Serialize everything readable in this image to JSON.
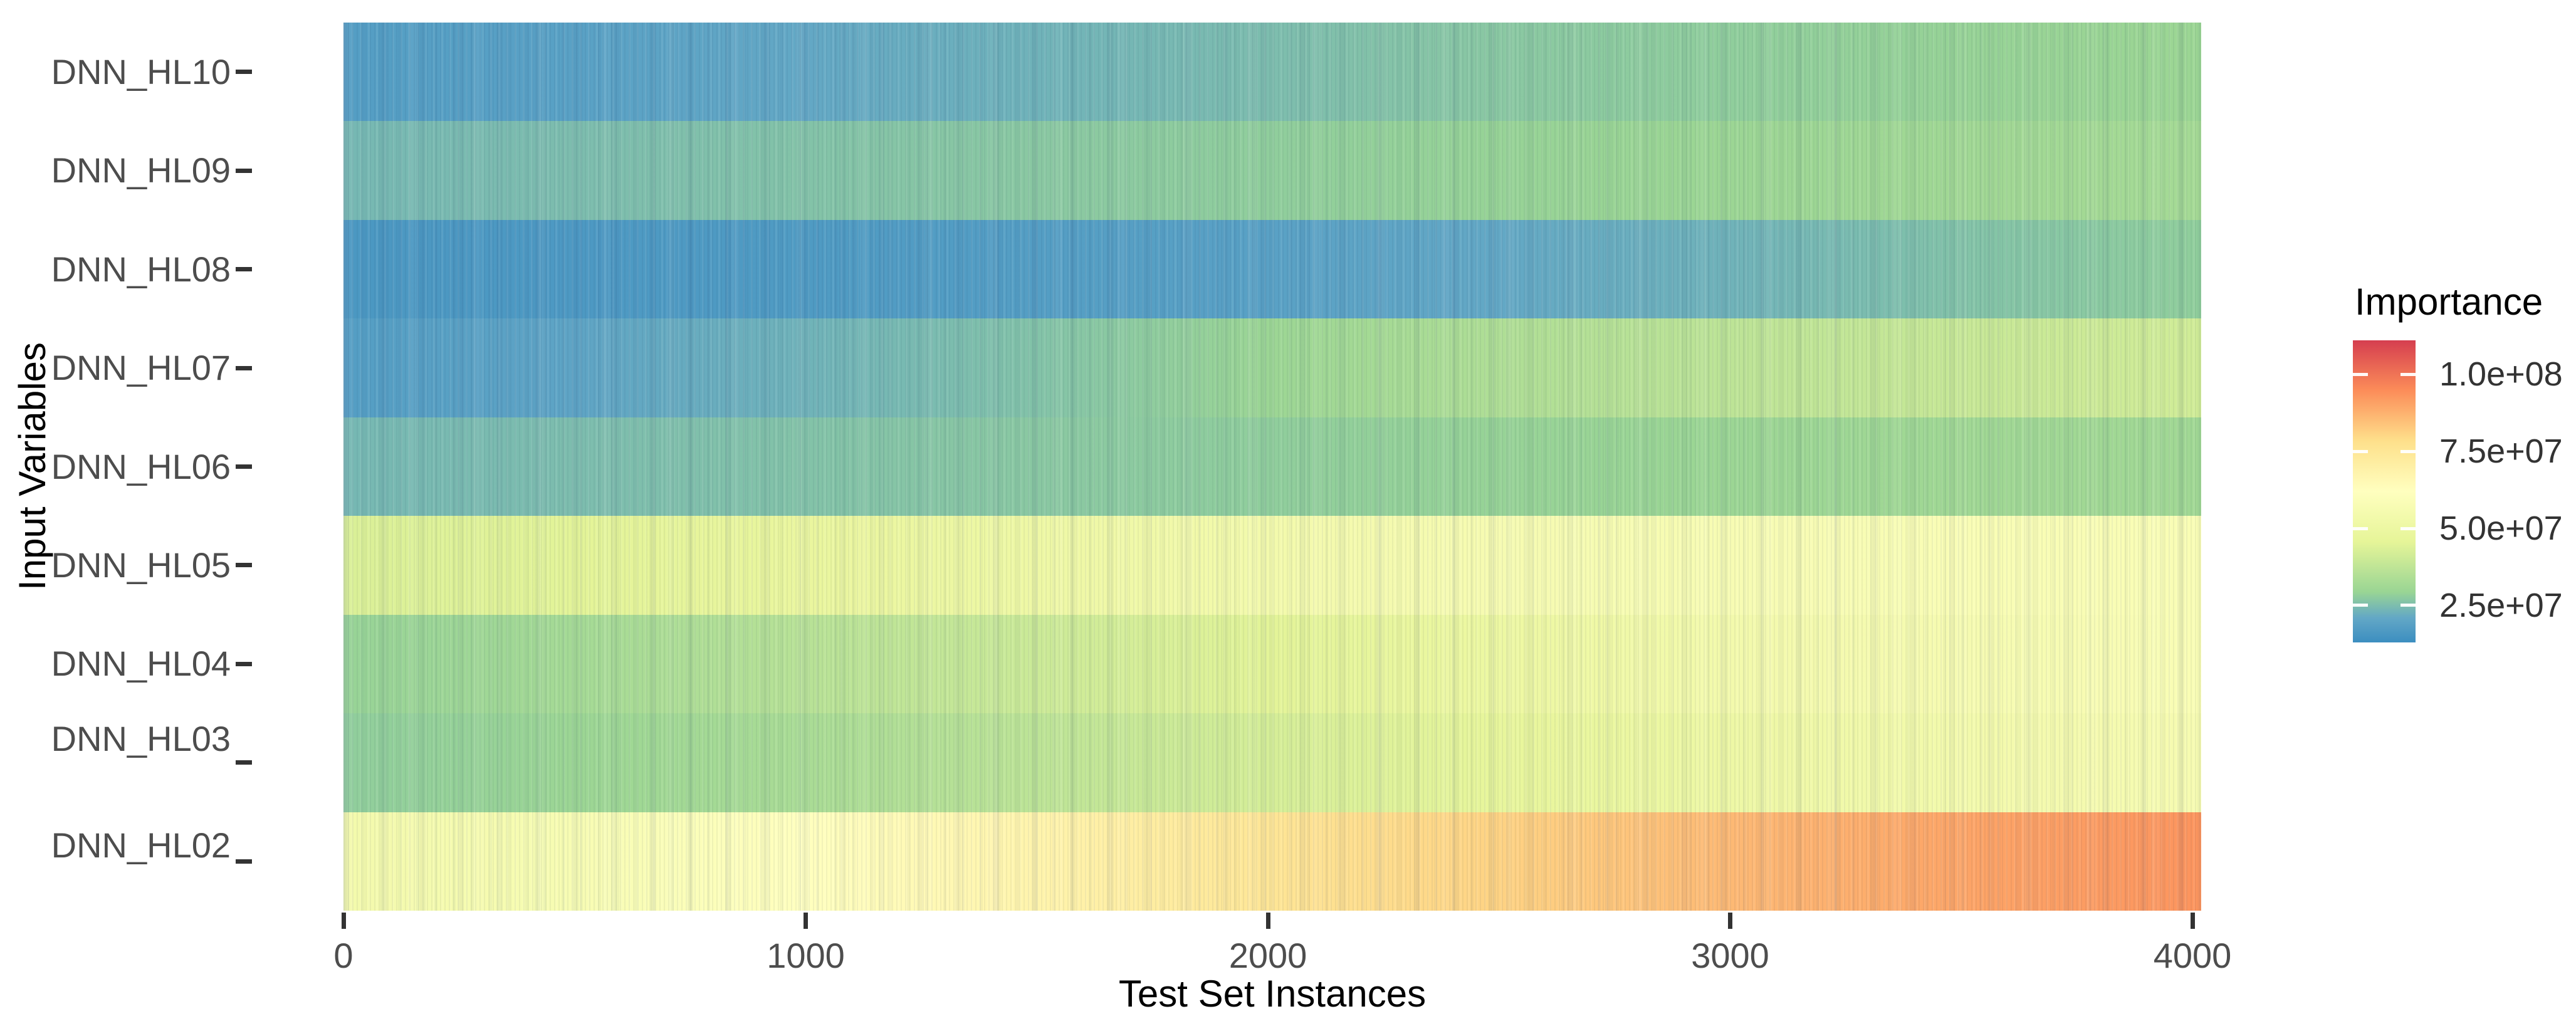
{
  "chart_data": {
    "type": "heatmap",
    "title": "",
    "xlabel": "Test Set Instances",
    "ylabel": "Input Variables",
    "x_ticks": [
      0,
      1000,
      2000,
      3000,
      4000
    ],
    "xlim": [
      0,
      4020
    ],
    "grid": "off",
    "categories_top_to_bottom": [
      "DNN_HL10",
      "DNN_HL09",
      "DNN_HL08",
      "DNN_HL07",
      "DNN_HL06",
      "DNN_HL05",
      "DNN_HL04",
      "DNN_HL03",
      "DNN_HL02"
    ],
    "x_sample_points": [
      0,
      500,
      1000,
      1500,
      2000,
      2500,
      3000,
      3500,
      4000
    ],
    "series": [
      {
        "name": "DNN_HL10",
        "values": [
          18000000,
          19000000,
          21000000,
          23000000,
          25000000,
          27000000,
          28000000,
          29000000,
          30000000
        ]
      },
      {
        "name": "DNN_HL09",
        "values": [
          24000000,
          25000000,
          26000000,
          27000000,
          28000000,
          29000000,
          30000000,
          31000000,
          32000000
        ]
      },
      {
        "name": "DNN_HL08",
        "values": [
          16000000,
          16500000,
          17000000,
          18000000,
          19000000,
          21000000,
          23000000,
          26000000,
          28000000
        ]
      },
      {
        "name": "DNN_HL07",
        "values": [
          18000000,
          20000000,
          23000000,
          26000000,
          30000000,
          34000000,
          37000000,
          39000000,
          41000000
        ]
      },
      {
        "name": "DNN_HL06",
        "values": [
          24000000,
          25000000,
          26000000,
          27000000,
          28000000,
          29000000,
          30000000,
          31000000,
          31000000
        ]
      },
      {
        "name": "DNN_HL05",
        "values": [
          43000000,
          45000000,
          48000000,
          51000000,
          54000000,
          56000000,
          57000000,
          58000000,
          58000000
        ]
      },
      {
        "name": "DNN_HL04",
        "values": [
          29000000,
          32000000,
          36000000,
          40000000,
          45000000,
          50000000,
          54000000,
          56000000,
          58000000
        ]
      },
      {
        "name": "DNN_HL03",
        "values": [
          28000000,
          30000000,
          33000000,
          37000000,
          42000000,
          47000000,
          51000000,
          54000000,
          56000000
        ]
      },
      {
        "name": "DNN_HL02",
        "values": [
          54000000,
          57000000,
          62000000,
          68000000,
          75000000,
          81000000,
          86000000,
          90000000,
          93000000
        ]
      }
    ],
    "legend": {
      "title": "Importance",
      "position": "right",
      "tick_values": [
        100000000,
        75000000,
        50000000,
        25000000
      ],
      "tick_labels": [
        "1.0e+08",
        "7.5e+07",
        "5.0e+07",
        "2.5e+07"
      ],
      "scale_min": 13000000,
      "scale_max": 111000000,
      "palette_low_to_high": [
        {
          "t": 0.0,
          "color": "#3c8ec0"
        },
        {
          "t": 0.08,
          "color": "#62a7c6"
        },
        {
          "t": 0.167,
          "color": "#99d594"
        },
        {
          "t": 0.333,
          "color": "#e6f598"
        },
        {
          "t": 0.5,
          "color": "#ffffbf"
        },
        {
          "t": 0.667,
          "color": "#fee08b"
        },
        {
          "t": 0.833,
          "color": "#fc8d59"
        },
        {
          "t": 1.0,
          "color": "#d53e4f"
        }
      ]
    }
  },
  "colors": {
    "background": "#ffffff",
    "tick_label": "#4d4d4d",
    "axis_title": "#000000",
    "tick_mark": "#333333"
  }
}
